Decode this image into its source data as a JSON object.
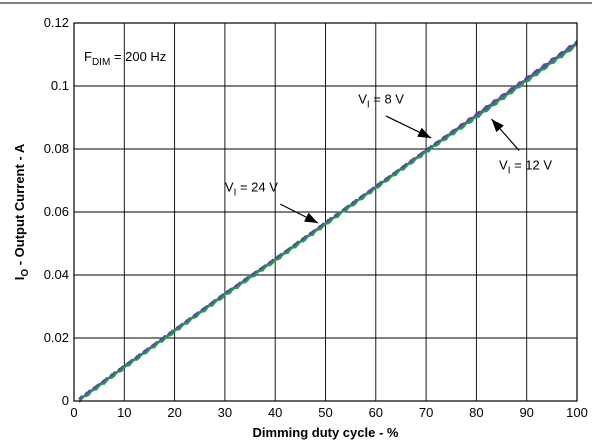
{
  "chart_data": {
    "type": "line",
    "title": "",
    "xlabel": "Dimming duty cycle - %",
    "ylabel": {
      "main": "I",
      "sub": "O",
      "rest": " - Output Current - A"
    },
    "xlim": [
      0,
      100
    ],
    "ylim": [
      0,
      0.12
    ],
    "x_ticks": [
      0,
      10,
      20,
      30,
      40,
      50,
      60,
      70,
      80,
      90,
      100
    ],
    "x_tick_labels": [
      "0",
      "10",
      "20",
      "30",
      "40",
      "50",
      "60",
      "70",
      "80",
      "90",
      "100"
    ],
    "y_ticks": [
      0,
      0.02,
      0.04,
      0.06,
      0.08,
      0.1,
      0.12
    ],
    "y_tick_labels": [
      "0",
      "0.02",
      "0.04",
      "0.06",
      "0.08",
      "0.1",
      "0.12"
    ],
    "grid": true,
    "condition": {
      "main": "F",
      "sub": "DIM",
      "rest": " = 200 Hz"
    },
    "series": [
      {
        "name": "V_I = 8 V",
        "color": "#3a5d9c",
        "x": [
          1,
          10,
          20,
          30,
          40,
          50,
          60,
          70,
          80,
          90,
          100
        ],
        "y": [
          0.0005,
          0.011,
          0.0225,
          0.034,
          0.045,
          0.0565,
          0.068,
          0.0795,
          0.0905,
          0.102,
          0.1135
        ]
      },
      {
        "name": "V_I = 12 V",
        "color": "#6b3fa0",
        "x": [
          1,
          10,
          20,
          30,
          40,
          50,
          60,
          70,
          80,
          90,
          100
        ],
        "y": [
          0.0005,
          0.011,
          0.0225,
          0.034,
          0.045,
          0.0565,
          0.068,
          0.0795,
          0.091,
          0.1025,
          0.114
        ]
      },
      {
        "name": "V_I = 24 V",
        "color": "#1f9e50",
        "x": [
          1,
          10,
          20,
          30,
          40,
          50,
          60,
          70,
          80,
          90,
          100
        ],
        "y": [
          0.0,
          0.0105,
          0.022,
          0.0335,
          0.0445,
          0.056,
          0.0675,
          0.079,
          0.09,
          0.1015,
          0.113
        ]
      }
    ],
    "annotations": [
      {
        "main": "V",
        "sub": "I",
        "rest": " = 8 V",
        "text_at": [
          56.5,
          0.0945
        ],
        "arrow_from": [
          62,
          0.0905
        ],
        "arrow_to": [
          71,
          0.0835
        ],
        "series": "V_I = 8 V"
      },
      {
        "main": "V",
        "sub": "I",
        "rest": " = 12 V",
        "text_at": [
          84.5,
          0.0735
        ],
        "arrow_from": [
          88.5,
          0.0795
        ],
        "arrow_to": [
          83,
          0.0895
        ],
        "series": "V_I = 12 V"
      },
      {
        "main": "V",
        "sub": "I",
        "rest": " = 24 V",
        "text_at": [
          30,
          0.0665
        ],
        "arrow_from": [
          41,
          0.0625
        ],
        "arrow_to": [
          48.5,
          0.0565
        ],
        "series": "V_I = 24 V"
      }
    ]
  }
}
